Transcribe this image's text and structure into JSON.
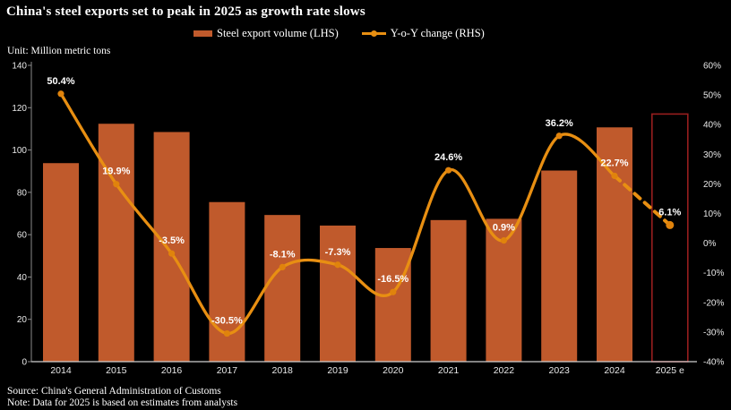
{
  "title": "China's steel exports set to peak in 2025 as growth rate slows",
  "unit_label": "Unit: Million metric tons",
  "legend": {
    "bar_label": "Steel export volume (LHS)",
    "line_label": "Y-o-Y change  (RHS)"
  },
  "footer": {
    "source": "Source: China's General Administration of Customs",
    "note": "Note: Data for 2025 is based on estimates from analysts"
  },
  "colors": {
    "background": "#000000",
    "bar_fill": "#C05A2C",
    "line": "#E88F12",
    "marker": "#E0830C",
    "estimate_bar_outline": "#961E1E",
    "axis_line": "#8a8a8a",
    "baseline": "#cfcfcf",
    "tick_text": "#e8e8e8",
    "data_label_text": "#ffffff"
  },
  "chart_data": {
    "type": "bar",
    "subtype": "combo-bar-line-dual-axis",
    "title": "China's steel exports set to peak in 2025 as growth rate slows",
    "categories": [
      "2014",
      "2015",
      "2016",
      "2017",
      "2018",
      "2019",
      "2020",
      "2021",
      "2022",
      "2023",
      "2024",
      "2025 e"
    ],
    "series": [
      {
        "name": "Steel export volume (LHS)",
        "chart_type": "bar",
        "axis": "left",
        "values": [
          93.8,
          112.4,
          108.5,
          75.4,
          69.3,
          64.3,
          53.7,
          66.9,
          67.5,
          90.3,
          110.7,
          117.0
        ],
        "color": "#C05A2C",
        "last_value_is_estimate": true,
        "estimate_bar_style": "hollow with dark-red outline"
      },
      {
        "name": "Y-o-Y change (RHS)",
        "chart_type": "line",
        "axis": "right",
        "values": [
          50.4,
          19.9,
          -3.5,
          -30.5,
          -8.1,
          -7.3,
          -16.5,
          24.6,
          0.9,
          36.2,
          22.7,
          6.1
        ],
        "point_labels": [
          "50.4%",
          "19.9%",
          "-3.5%",
          "-30.5%",
          "-8.1%",
          "-7.3%",
          "-16.5%",
          "24.6%",
          "0.9%",
          "36.2%",
          "22.7%",
          "6.1%"
        ],
        "color": "#E88F12",
        "smooth": true,
        "dashed_last_segment": true
      }
    ],
    "left_axis": {
      "min": 0,
      "max": 140,
      "step": 20,
      "tick_labels": [
        "0",
        "20",
        "40",
        "60",
        "80",
        "100",
        "120",
        "140"
      ],
      "unit": "Million metric tons"
    },
    "right_axis": {
      "min": -40,
      "max": 60,
      "step": 10,
      "tick_labels": [
        "-40%",
        "-30%",
        "-20%",
        "-10%",
        "0%",
        "10%",
        "20%",
        "30%",
        "40%",
        "50%",
        "60%"
      ]
    },
    "legend_position": "top-center",
    "grid": false
  }
}
